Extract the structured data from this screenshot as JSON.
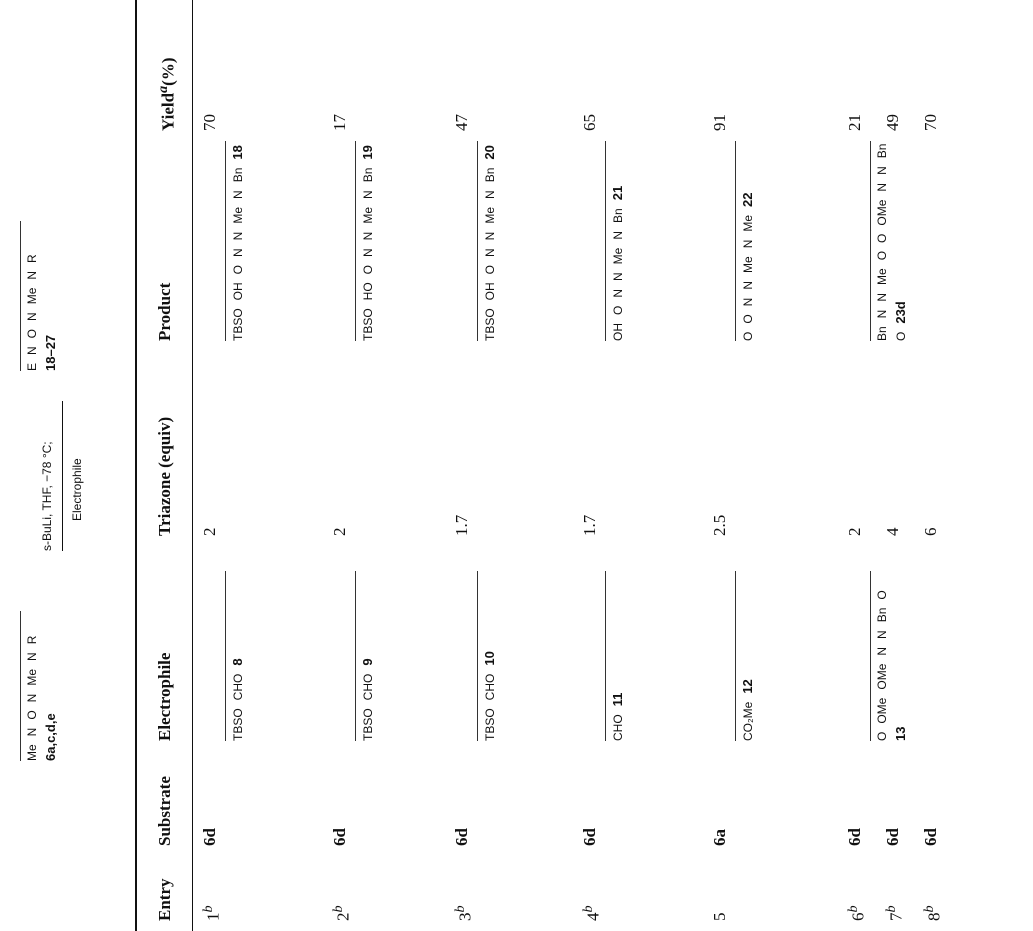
{
  "scheme": {
    "reactant": "6a,c,d,e",
    "reactant_atoms": [
      "Me",
      "N",
      "O",
      "N",
      "Me",
      "N",
      "R"
    ],
    "reagents": "s-BuLi, THF, −78 °C;",
    "reagent2": "Electrophile",
    "product": "18–27",
    "product_atoms": [
      "E",
      "N",
      "O",
      "N",
      "Me",
      "N",
      "R"
    ]
  },
  "table": {
    "headers": [
      "Entry",
      "Substrate",
      "Electrophile",
      "Triazone (equiv)",
      "Product",
      {
        "text": "Yield",
        "sup": "a",
        "unit": "(%)"
      }
    ],
    "rows": [
      {
        "entry": "1",
        "sup": "b",
        "substrate": "6d",
        "electrophile": {
          "atoms": [
            "TBSO",
            "CHO"
          ],
          "id": "8"
        },
        "triazone": "2",
        "product": {
          "atoms": [
            "TBSO",
            "OH",
            "O",
            "N",
            "N",
            "Me",
            "N",
            "Bn"
          ],
          "id": "18"
        },
        "yield": "70"
      },
      {
        "entry": "2",
        "sup": "b",
        "substrate": "6d",
        "electrophile": {
          "atoms": [
            "TBSO",
            "CHO"
          ],
          "id": "9"
        },
        "triazone": "2",
        "product": {
          "atoms": [
            "TBSO",
            "HO",
            "O",
            "N",
            "N",
            "Me",
            "N",
            "Bn"
          ],
          "id": "19"
        },
        "yield": "17"
      },
      {
        "entry": "3",
        "sup": "b",
        "substrate": "6d",
        "electrophile": {
          "atoms": [
            "TBSO",
            "CHO"
          ],
          "id": "10"
        },
        "triazone": "1.7",
        "product": {
          "atoms": [
            "TBSO",
            "OH",
            "O",
            "N",
            "N",
            "Me",
            "N",
            "Bn"
          ],
          "id": "20"
        },
        "yield": "47"
      },
      {
        "entry": "4",
        "sup": "b",
        "substrate": "6d",
        "electrophile": {
          "atoms": [
            "CHO"
          ],
          "id": "11"
        },
        "triazone": "1.7",
        "product": {
          "atoms": [
            "OH",
            "O",
            "N",
            "N",
            "Me",
            "N",
            "Bn"
          ],
          "id": "21"
        },
        "yield": "65"
      },
      {
        "entry": "5",
        "sup": null,
        "substrate": "6a",
        "electrophile": {
          "atoms": [
            "CO₂Me"
          ],
          "id": "12"
        },
        "triazone": "2.5",
        "product": {
          "atoms": [
            "O",
            "O",
            "N",
            "N",
            "Me",
            "N",
            "Me"
          ],
          "id": "22"
        },
        "yield": "91"
      },
      {
        "entry": "6",
        "sup": "b",
        "substrate": "6d",
        "electrophile": {
          "atoms": [
            "O",
            "OMe",
            "OMe",
            "N",
            "N",
            "Bn",
            "O"
          ],
          "id": "13"
        },
        "triazone": "2",
        "product": {
          "atoms": [
            "Bn",
            "N",
            "N",
            "Me",
            "O",
            "O",
            "OMe",
            "N",
            "N",
            "Bn",
            "O"
          ],
          "id": "23d"
        },
        "yield": "21"
      },
      {
        "entry": "7",
        "sup": "b",
        "substrate": "6d",
        "electrophile": null,
        "triazone": "4",
        "product": null,
        "yield": "49"
      },
      {
        "entry": "8",
        "sup": "b",
        "substrate": "6d",
        "electrophile": null,
        "triazone": "6",
        "product": null,
        "yield": "70"
      }
    ]
  }
}
